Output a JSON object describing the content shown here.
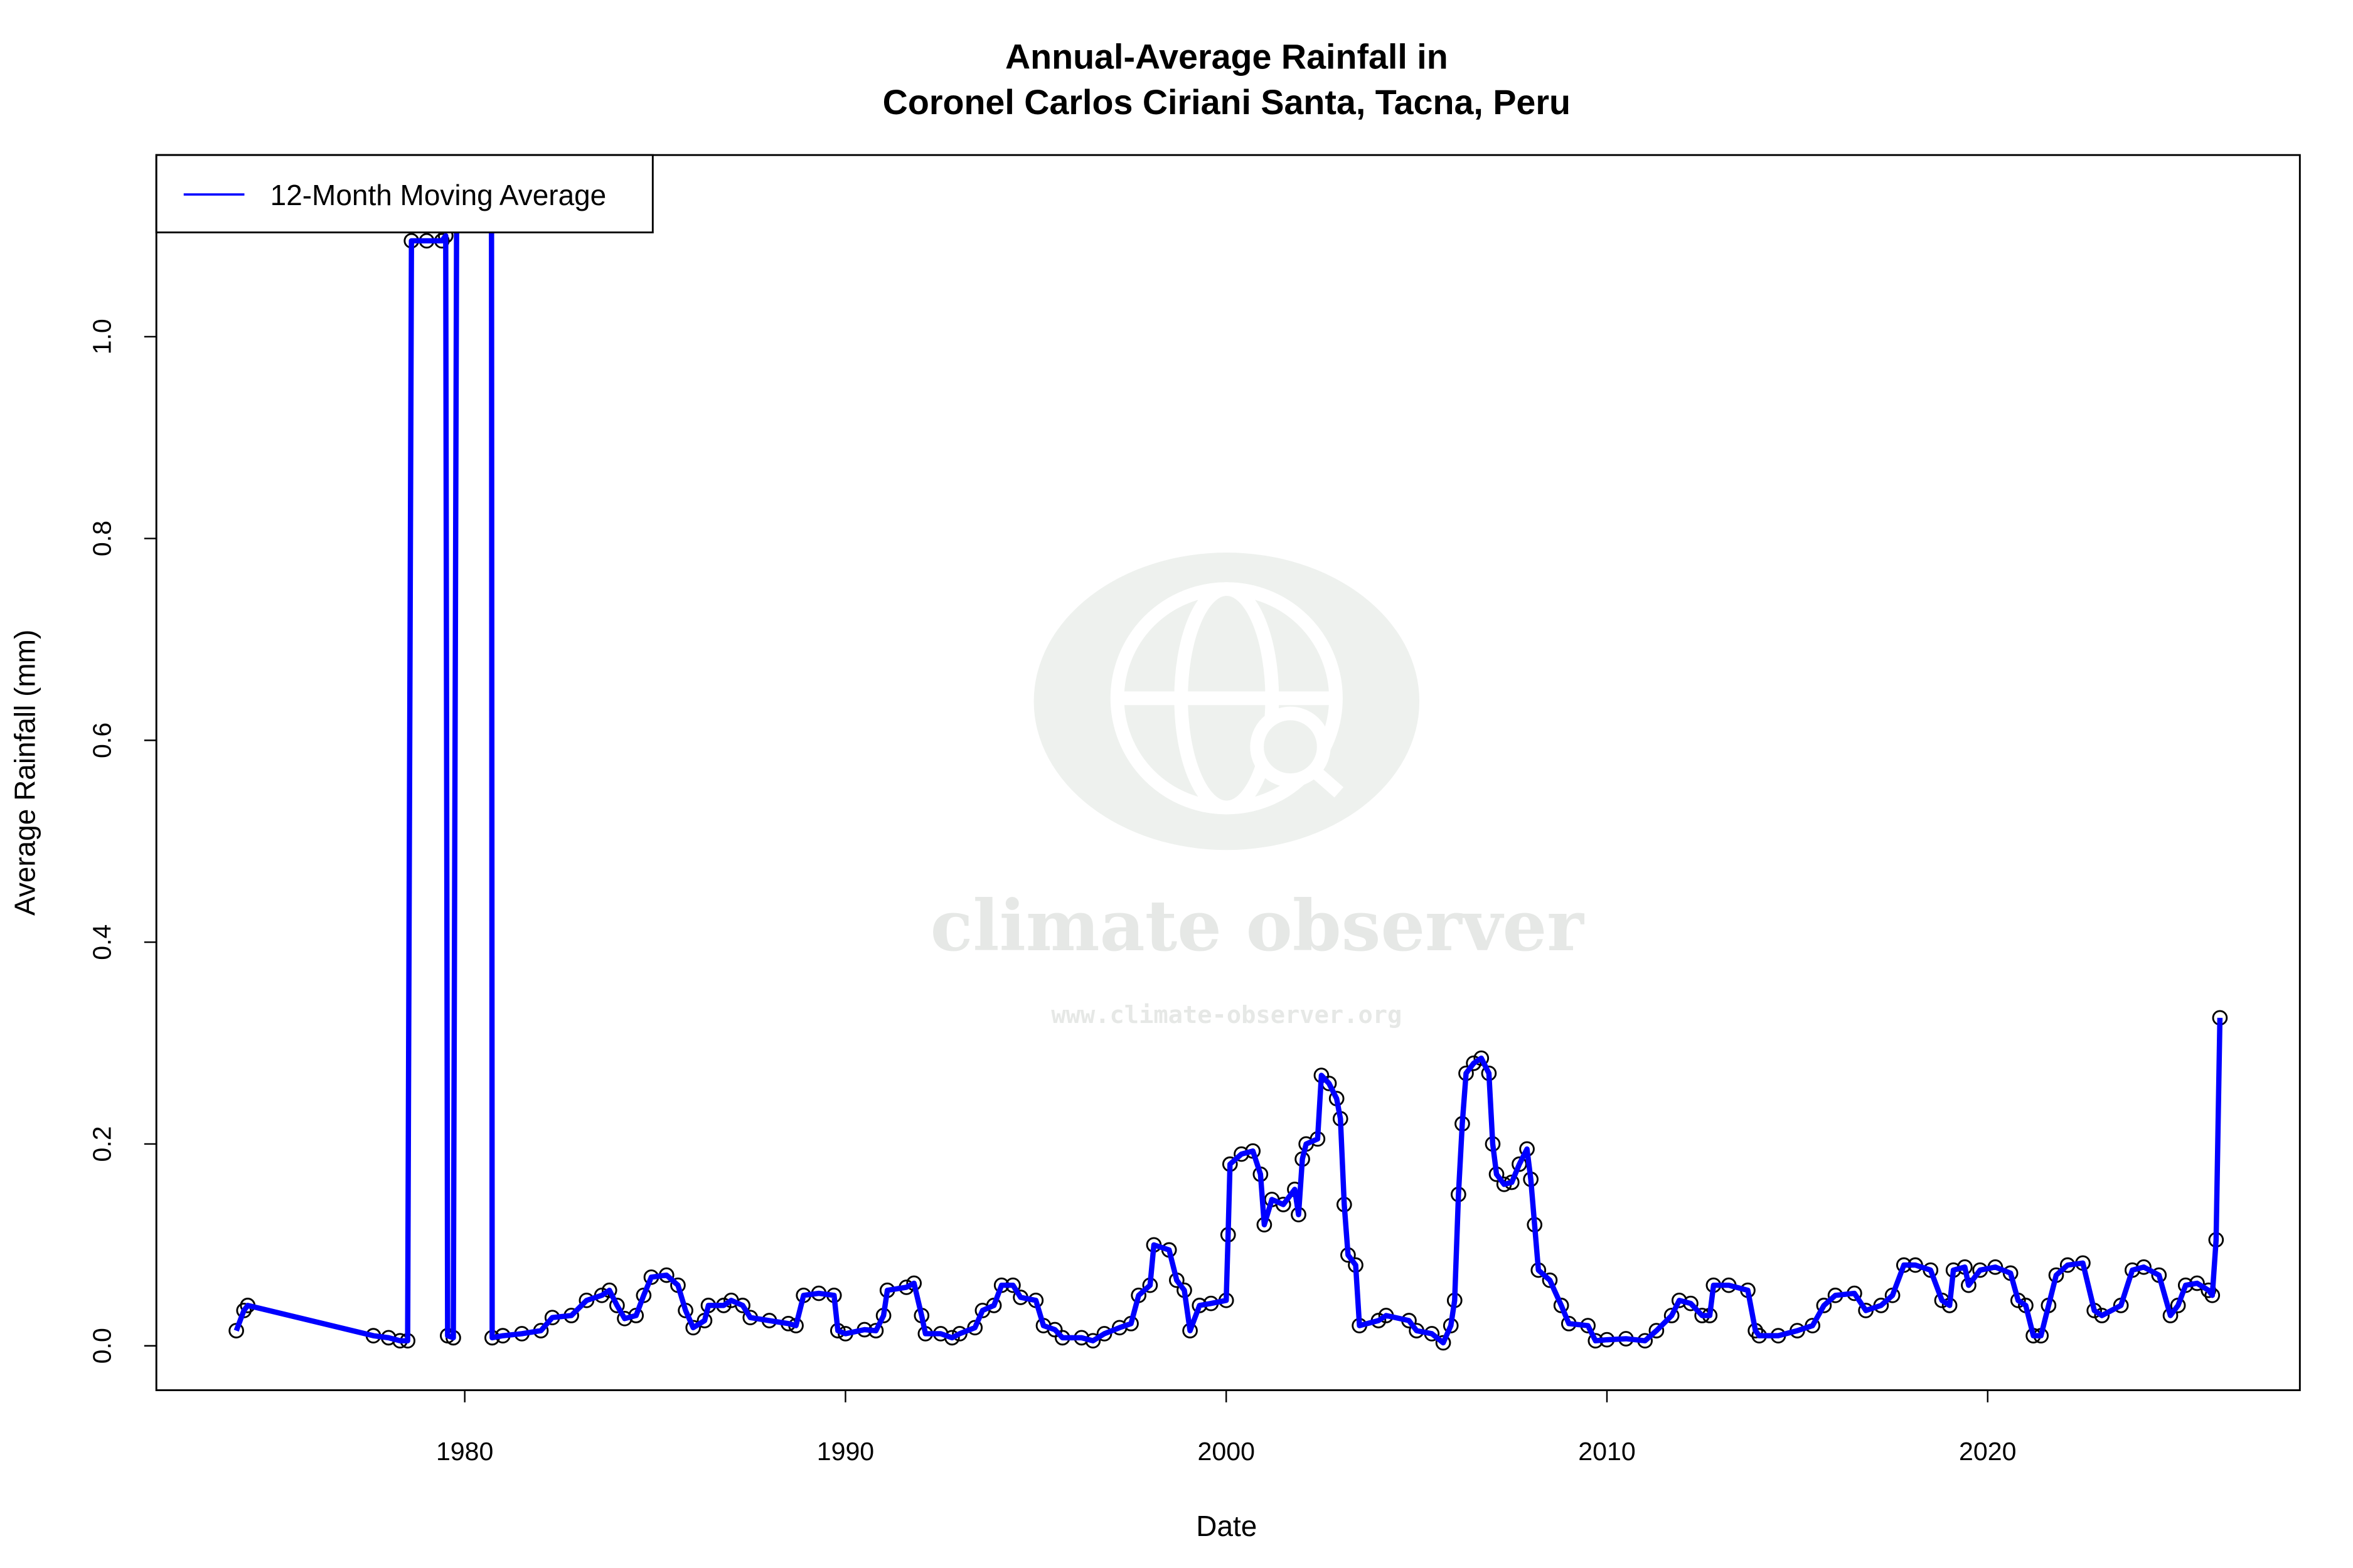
{
  "chart_data": {
    "type": "line",
    "title": "Annual-Average Rainfall in",
    "subtitle": "Coronel Carlos Ciriani Santa, Tacna, Peru",
    "xlabel": "Date",
    "ylabel": "Average Rainfall (mm)",
    "xlim": [
      1971.9,
      2028.2
    ],
    "ylim": [
      -0.044,
      1.18
    ],
    "x_ticks": [
      "1980",
      "1990",
      "2000",
      "2010",
      "2020"
    ],
    "x_tick_values": [
      1980,
      1990,
      2000,
      2010,
      2020
    ],
    "y_ticks": [
      "0.0",
      "0.2",
      "0.4",
      "0.6",
      "0.8",
      "1.0"
    ],
    "y_tick_values": [
      0,
      0.2,
      0.4,
      0.6,
      0.8,
      1.0
    ],
    "grid": false,
    "legend": {
      "placement": "top-left",
      "entries": [
        "12-Month Moving Average"
      ]
    },
    "colors": {
      "line": "#0000ff",
      "points": "#000000"
    },
    "series": [
      {
        "name": "12-Month Moving Average",
        "points": [
          [
            1974.0,
            0.015
          ],
          [
            1974.2,
            0.035
          ],
          [
            1974.3,
            0.04
          ],
          [
            1977.6,
            0.01
          ],
          [
            1978.0,
            0.008
          ],
          [
            1978.3,
            0.005
          ],
          [
            1978.5,
            0.005
          ],
          [
            1978.6,
            1.095
          ],
          [
            1979.0,
            1.095
          ],
          [
            1979.4,
            1.095
          ],
          [
            1979.5,
            1.1
          ],
          [
            1979.55,
            0.01
          ],
          [
            1979.7,
            0.008
          ],
          [
            1979.8,
            1.3
          ],
          [
            1980.7,
            1.3
          ],
          [
            1980.72,
            0.008
          ],
          [
            1981.0,
            0.01
          ],
          [
            1981.5,
            0.012
          ],
          [
            1982.0,
            0.015
          ],
          [
            1982.3,
            0.028
          ],
          [
            1982.8,
            0.03
          ],
          [
            1983.2,
            0.045
          ],
          [
            1983.6,
            0.05
          ],
          [
            1983.8,
            0.055
          ],
          [
            1984.0,
            0.04
          ],
          [
            1984.2,
            0.027
          ],
          [
            1984.5,
            0.03
          ],
          [
            1984.7,
            0.05
          ],
          [
            1984.9,
            0.068
          ],
          [
            1985.3,
            0.07
          ],
          [
            1985.6,
            0.06
          ],
          [
            1985.8,
            0.035
          ],
          [
            1986.0,
            0.018
          ],
          [
            1986.3,
            0.025
          ],
          [
            1986.4,
            0.04
          ],
          [
            1986.8,
            0.04
          ],
          [
            1987.0,
            0.045
          ],
          [
            1987.3,
            0.04
          ],
          [
            1987.5,
            0.028
          ],
          [
            1988.0,
            0.025
          ],
          [
            1988.5,
            0.022
          ],
          [
            1988.7,
            0.02
          ],
          [
            1988.9,
            0.05
          ],
          [
            1989.3,
            0.052
          ],
          [
            1989.7,
            0.05
          ],
          [
            1989.8,
            0.015
          ],
          [
            1990.0,
            0.012
          ],
          [
            1990.5,
            0.016
          ],
          [
            1990.8,
            0.015
          ],
          [
            1991.0,
            0.03
          ],
          [
            1991.1,
            0.055
          ],
          [
            1991.6,
            0.058
          ],
          [
            1991.8,
            0.062
          ],
          [
            1992.0,
            0.03
          ],
          [
            1992.1,
            0.012
          ],
          [
            1992.5,
            0.012
          ],
          [
            1992.8,
            0.008
          ],
          [
            1993.0,
            0.012
          ],
          [
            1993.4,
            0.018
          ],
          [
            1993.6,
            0.035
          ],
          [
            1993.9,
            0.04
          ],
          [
            1994.1,
            0.06
          ],
          [
            1994.4,
            0.06
          ],
          [
            1994.6,
            0.048
          ],
          [
            1995.0,
            0.045
          ],
          [
            1995.2,
            0.02
          ],
          [
            1995.5,
            0.016
          ],
          [
            1995.7,
            0.008
          ],
          [
            1996.2,
            0.008
          ],
          [
            1996.5,
            0.005
          ],
          [
            1996.8,
            0.012
          ],
          [
            1997.2,
            0.018
          ],
          [
            1997.5,
            0.022
          ],
          [
            1997.7,
            0.05
          ],
          [
            1998.0,
            0.06
          ],
          [
            1998.1,
            0.1
          ],
          [
            1998.5,
            0.095
          ],
          [
            1998.7,
            0.065
          ],
          [
            1998.9,
            0.055
          ],
          [
            1999.05,
            0.015
          ],
          [
            1999.3,
            0.04
          ],
          [
            1999.6,
            0.042
          ],
          [
            2000.0,
            0.045
          ],
          [
            2000.05,
            0.11
          ],
          [
            2000.1,
            0.18
          ],
          [
            2000.4,
            0.19
          ],
          [
            2000.7,
            0.193
          ],
          [
            2000.9,
            0.17
          ],
          [
            2001.0,
            0.12
          ],
          [
            2001.2,
            0.145
          ],
          [
            2001.5,
            0.14
          ],
          [
            2001.8,
            0.155
          ],
          [
            2001.9,
            0.13
          ],
          [
            2002.0,
            0.185
          ],
          [
            2002.1,
            0.2
          ],
          [
            2002.4,
            0.205
          ],
          [
            2002.5,
            0.268
          ],
          [
            2002.7,
            0.26
          ],
          [
            2002.9,
            0.245
          ],
          [
            2003.0,
            0.225
          ],
          [
            2003.1,
            0.14
          ],
          [
            2003.2,
            0.09
          ],
          [
            2003.4,
            0.08
          ],
          [
            2003.5,
            0.02
          ],
          [
            2004.0,
            0.025
          ],
          [
            2004.2,
            0.03
          ],
          [
            2004.8,
            0.025
          ],
          [
            2005.0,
            0.015
          ],
          [
            2005.4,
            0.012
          ],
          [
            2005.7,
            0.003
          ],
          [
            2005.9,
            0.02
          ],
          [
            2006.0,
            0.045
          ],
          [
            2006.1,
            0.15
          ],
          [
            2006.2,
            0.22
          ],
          [
            2006.3,
            0.27
          ],
          [
            2006.5,
            0.28
          ],
          [
            2006.7,
            0.285
          ],
          [
            2006.9,
            0.27
          ],
          [
            2007.0,
            0.2
          ],
          [
            2007.1,
            0.17
          ],
          [
            2007.3,
            0.16
          ],
          [
            2007.5,
            0.162
          ],
          [
            2007.7,
            0.18
          ],
          [
            2007.9,
            0.195
          ],
          [
            2008.0,
            0.165
          ],
          [
            2008.1,
            0.12
          ],
          [
            2008.2,
            0.075
          ],
          [
            2008.5,
            0.065
          ],
          [
            2008.8,
            0.04
          ],
          [
            2009.0,
            0.022
          ],
          [
            2009.5,
            0.02
          ],
          [
            2009.7,
            0.005
          ],
          [
            2010.0,
            0.006
          ],
          [
            2010.5,
            0.007
          ],
          [
            2011.0,
            0.005
          ],
          [
            2011.3,
            0.015
          ],
          [
            2011.7,
            0.03
          ],
          [
            2011.9,
            0.045
          ],
          [
            2012.2,
            0.042
          ],
          [
            2012.5,
            0.03
          ],
          [
            2012.7,
            0.03
          ],
          [
            2012.8,
            0.06
          ],
          [
            2013.2,
            0.06
          ],
          [
            2013.7,
            0.055
          ],
          [
            2013.9,
            0.015
          ],
          [
            2014.0,
            0.01
          ],
          [
            2014.5,
            0.01
          ],
          [
            2015.0,
            0.015
          ],
          [
            2015.4,
            0.02
          ],
          [
            2015.7,
            0.04
          ],
          [
            2016.0,
            0.05
          ],
          [
            2016.5,
            0.052
          ],
          [
            2016.8,
            0.035
          ],
          [
            2017.2,
            0.04
          ],
          [
            2017.5,
            0.05
          ],
          [
            2017.8,
            0.08
          ],
          [
            2018.1,
            0.08
          ],
          [
            2018.5,
            0.075
          ],
          [
            2018.8,
            0.045
          ],
          [
            2019.0,
            0.04
          ],
          [
            2019.1,
            0.075
          ],
          [
            2019.4,
            0.078
          ],
          [
            2019.5,
            0.06
          ],
          [
            2019.8,
            0.075
          ],
          [
            2020.2,
            0.078
          ],
          [
            2020.6,
            0.072
          ],
          [
            2020.8,
            0.045
          ],
          [
            2021.0,
            0.04
          ],
          [
            2021.2,
            0.01
          ],
          [
            2021.4,
            0.01
          ],
          [
            2021.6,
            0.04
          ],
          [
            2021.8,
            0.07
          ],
          [
            2022.1,
            0.08
          ],
          [
            2022.5,
            0.082
          ],
          [
            2022.8,
            0.035
          ],
          [
            2023.0,
            0.03
          ],
          [
            2023.5,
            0.04
          ],
          [
            2023.8,
            0.075
          ],
          [
            2024.1,
            0.078
          ],
          [
            2024.5,
            0.07
          ],
          [
            2024.8,
            0.03
          ],
          [
            2025.0,
            0.04
          ],
          [
            2025.2,
            0.06
          ],
          [
            2025.5,
            0.062
          ],
          [
            2025.8,
            0.055
          ],
          [
            2025.9,
            0.05
          ],
          [
            2026.0,
            0.105
          ],
          [
            2026.1,
            0.325
          ]
        ]
      }
    ]
  },
  "watermark": {
    "brand": "climate observer",
    "url": "www.climate-observer.org",
    "color": "#e6e8e6"
  }
}
